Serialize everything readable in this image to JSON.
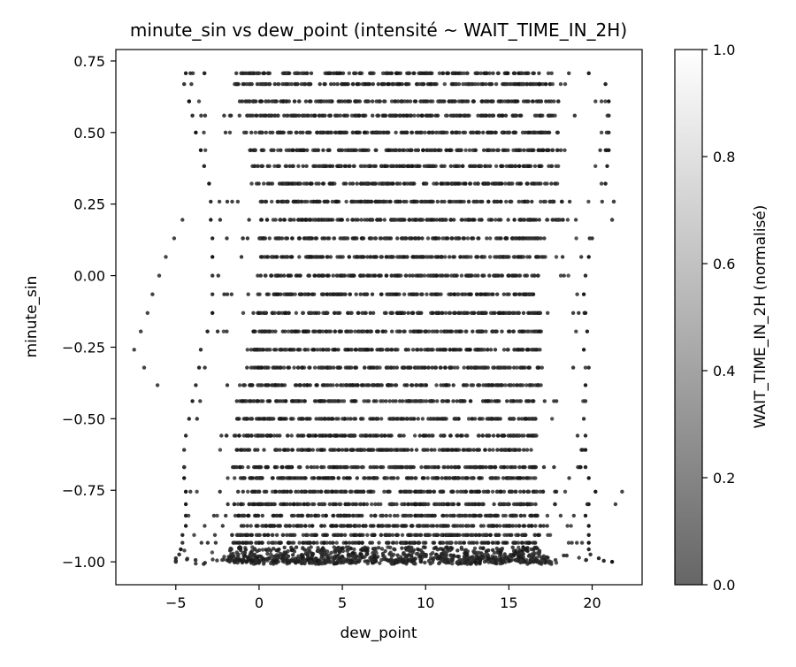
{
  "chart_data": {
    "type": "scatter",
    "title": "minute_sin vs dew_point (intensité ~ WAIT_TIME_IN_2H)",
    "xlabel": "dew_point",
    "ylabel": "minute_sin",
    "xlim": [
      -8.6,
      23.0
    ],
    "ylim": [
      -1.08,
      0.79
    ],
    "x_ticks": [
      -5,
      0,
      5,
      10,
      15,
      20
    ],
    "x_tick_labels": [
      "−5",
      "0",
      "5",
      "10",
      "15",
      "20"
    ],
    "y_ticks": [
      0.75,
      0.5,
      0.25,
      0.0,
      -0.25,
      -0.5,
      -0.75,
      -1.0
    ],
    "y_tick_labels": [
      "0.75",
      "0.50",
      "0.25",
      "0.00",
      "−0.25",
      "−0.50",
      "−0.75",
      "−1.00"
    ],
    "grid": false,
    "colorbar": {
      "label": "WAIT_TIME_IN_2H (normalisé)",
      "range": [
        0,
        1
      ],
      "ticks": [
        0.0,
        0.2,
        0.4,
        0.6,
        0.8,
        1.0
      ],
      "tick_labels": [
        "0.0",
        "0.2",
        "0.4",
        "0.6",
        "0.8",
        "1.0"
      ],
      "colormap": "Greys (alpha 0.6)",
      "color_low": "#666666",
      "color_high": "#ffffff"
    },
    "minute_sin_levels": [
      0.7071,
      0.6691,
      0.6088,
      0.5592,
      0.5,
      0.4384,
      0.3827,
      0.3214,
      0.2588,
      0.1951,
      0.1305,
      0.0654,
      0.0,
      -0.0654,
      -0.1305,
      -0.1951,
      -0.2588,
      -0.3214,
      -0.3827,
      -0.4384,
      -0.5,
      -0.5592,
      -0.6088,
      -0.6691,
      -0.7071,
      -0.7547,
      -0.7986,
      -0.8387,
      -0.8746,
      -0.9063,
      -0.9336,
      -0.9563,
      -0.9744,
      -0.9877,
      -0.9962,
      -1.0
    ],
    "dew_point_range_by_level": [
      [
        -4.4,
        19.8
      ],
      [
        -4.5,
        20.8
      ],
      [
        -4.2,
        21.0
      ],
      [
        -4.0,
        21.0
      ],
      [
        -3.8,
        21.0
      ],
      [
        -3.5,
        21.0
      ],
      [
        -3.3,
        20.9
      ],
      [
        -3.0,
        20.8
      ],
      [
        -2.9,
        21.3
      ],
      [
        -2.9,
        21.2
      ],
      [
        -2.8,
        20.0
      ],
      [
        -2.8,
        19.8
      ],
      [
        -2.8,
        19.6
      ],
      [
        -2.8,
        19.5
      ],
      [
        -2.8,
        19.6
      ],
      [
        -3.1,
        19.7
      ],
      [
        -3.5,
        19.5
      ],
      [
        -3.6,
        19.8
      ],
      [
        -3.8,
        19.6
      ],
      [
        -4.0,
        19.6
      ],
      [
        -4.2,
        19.5
      ],
      [
        -4.4,
        19.6
      ],
      [
        -4.5,
        19.6
      ],
      [
        -4.5,
        19.6
      ],
      [
        -4.5,
        19.8
      ],
      [
        -4.4,
        20.2
      ],
      [
        -4.4,
        19.8
      ],
      [
        -4.4,
        19.6
      ],
      [
        -4.4,
        19.8
      ],
      [
        -4.6,
        19.8
      ],
      [
        -4.6,
        19.8
      ],
      [
        -4.7,
        19.8
      ],
      [
        -4.8,
        19.9
      ],
      [
        -5.0,
        20.4
      ],
      [
        -5.0,
        20.7
      ],
      [
        -5.0,
        21.2
      ]
    ],
    "sparse_points": [
      {
        "x": -7.5,
        "y": -0.2588
      },
      {
        "x": -7.1,
        "y": -0.1951
      },
      {
        "x": -6.9,
        "y": -0.3214
      },
      {
        "x": -6.7,
        "y": -0.1305
      },
      {
        "x": -6.4,
        "y": -0.0654
      },
      {
        "x": -6.1,
        "y": -0.3827
      },
      {
        "x": -6.0,
        "y": 0.0
      },
      {
        "x": -5.6,
        "y": 0.0654
      },
      {
        "x": -5.1,
        "y": 0.1305
      },
      {
        "x": -4.6,
        "y": 0.1951
      },
      {
        "x": 20.6,
        "y": 0.2588
      },
      {
        "x": 21.8,
        "y": -0.7547
      },
      {
        "x": 21.4,
        "y": -0.7986
      },
      {
        "x": 21.3,
        "y": 0.2588
      },
      {
        "x": 21.2,
        "y": 0.1951
      }
    ],
    "intensity_typical": [
      0.0,
      0.3
    ]
  }
}
